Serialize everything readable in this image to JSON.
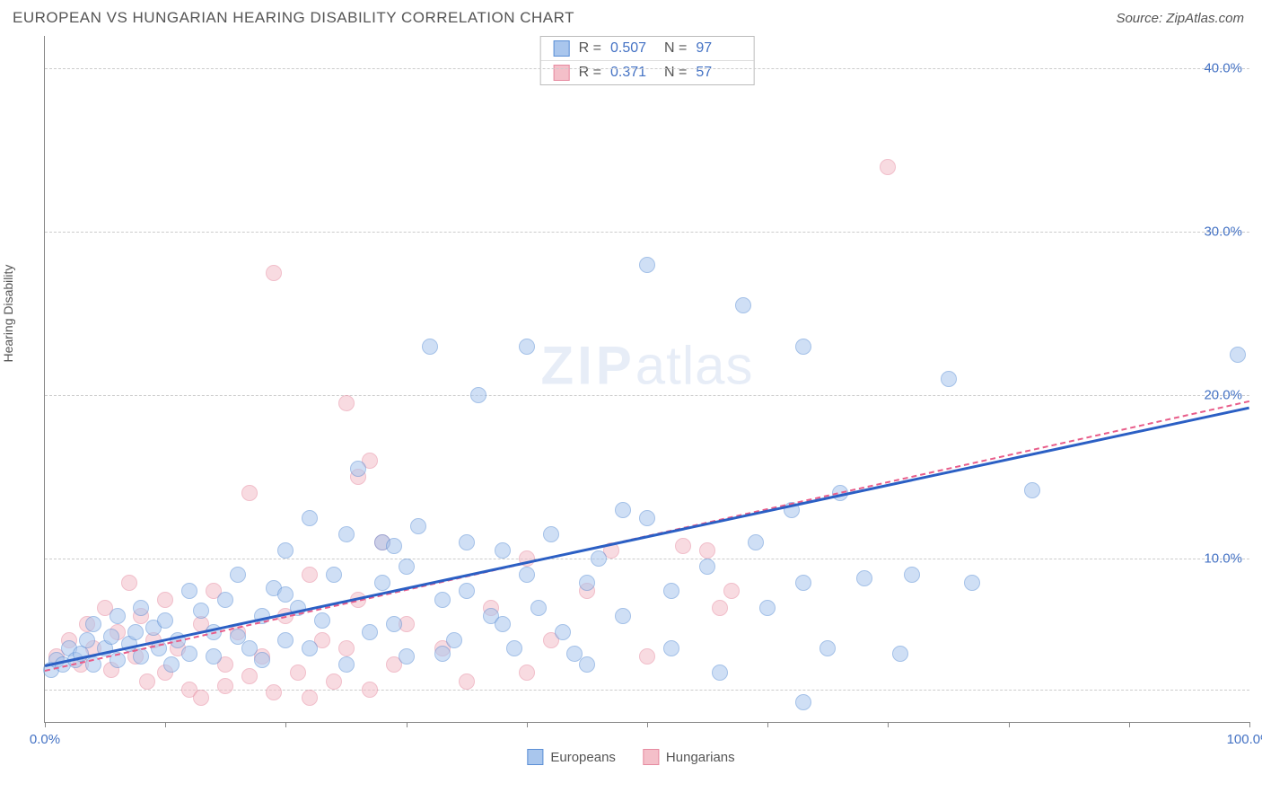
{
  "header": {
    "title": "EUROPEAN VS HUNGARIAN HEARING DISABILITY CORRELATION CHART",
    "source": "Source: ZipAtlas.com"
  },
  "watermark": {
    "bold": "ZIP",
    "rest": "atlas"
  },
  "chart": {
    "type": "scatter",
    "y_axis_label": "Hearing Disability",
    "xlim": [
      0,
      100
    ],
    "ylim": [
      0,
      42
    ],
    "x_ticks": [
      0,
      10,
      20,
      30,
      40,
      50,
      60,
      70,
      80,
      90,
      100
    ],
    "x_tick_labels": {
      "0": "0.0%",
      "100": "100.0%"
    },
    "y_gridlines": [
      2,
      10,
      20,
      30,
      40
    ],
    "y_tick_labels": {
      "10": "10.0%",
      "20": "20.0%",
      "30": "30.0%",
      "40": "40.0%"
    },
    "background_color": "#ffffff",
    "grid_color": "#cccccc",
    "axis_color": "#888888",
    "tick_label_color": "#4472c4",
    "point_radius": 9,
    "point_opacity": 0.55,
    "series_blue": {
      "label": "Europeans",
      "fill": "#a9c6ed",
      "stroke": "#5b8fd6",
      "trend_color": "#2b5fc4",
      "trend_width": 2.5,
      "trend_dash": "none",
      "trend": {
        "x1": 0,
        "y1": 3.5,
        "x2": 100,
        "y2": 19.3
      },
      "R": "0.507",
      "N": "97",
      "points": [
        [
          0.5,
          3.2
        ],
        [
          1,
          3.8
        ],
        [
          1.5,
          3.5
        ],
        [
          2,
          4.5
        ],
        [
          2.5,
          3.8
        ],
        [
          3,
          4.2
        ],
        [
          3.5,
          5
        ],
        [
          4,
          3.5
        ],
        [
          4,
          6
        ],
        [
          5,
          4.5
        ],
        [
          5.5,
          5.2
        ],
        [
          6,
          3.8
        ],
        [
          6,
          6.5
        ],
        [
          7,
          4.8
        ],
        [
          7.5,
          5.5
        ],
        [
          8,
          4
        ],
        [
          8,
          7
        ],
        [
          9,
          5.8
        ],
        [
          9.5,
          4.5
        ],
        [
          10,
          6.2
        ],
        [
          10.5,
          3.5
        ],
        [
          11,
          5
        ],
        [
          12,
          4.2
        ],
        [
          12,
          8
        ],
        [
          13,
          6.8
        ],
        [
          14,
          5.5
        ],
        [
          14,
          4
        ],
        [
          15,
          7.5
        ],
        [
          16,
          5.2
        ],
        [
          16,
          9
        ],
        [
          17,
          4.5
        ],
        [
          18,
          6.5
        ],
        [
          18,
          3.8
        ],
        [
          19,
          8.2
        ],
        [
          20,
          5
        ],
        [
          20,
          10.5
        ],
        [
          21,
          7
        ],
        [
          22,
          4.5
        ],
        [
          22,
          12.5
        ],
        [
          23,
          6.2
        ],
        [
          24,
          9
        ],
        [
          25,
          3.5
        ],
        [
          25,
          11.5
        ],
        [
          26,
          15.5
        ],
        [
          27,
          5.5
        ],
        [
          28,
          8.5
        ],
        [
          28,
          11
        ],
        [
          29,
          6
        ],
        [
          30,
          9.5
        ],
        [
          30,
          4
        ],
        [
          31,
          12
        ],
        [
          32,
          23
        ],
        [
          33,
          7.5
        ],
        [
          34,
          5
        ],
        [
          35,
          11
        ],
        [
          35,
          8
        ],
        [
          36,
          20
        ],
        [
          37,
          6.5
        ],
        [
          38,
          10.5
        ],
        [
          39,
          4.5
        ],
        [
          40,
          23
        ],
        [
          40,
          9
        ],
        [
          41,
          7
        ],
        [
          42,
          11.5
        ],
        [
          43,
          5.5
        ],
        [
          45,
          8.5
        ],
        [
          45,
          3.5
        ],
        [
          46,
          10
        ],
        [
          48,
          6.5
        ],
        [
          50,
          28
        ],
        [
          50,
          12.5
        ],
        [
          52,
          8
        ],
        [
          52,
          4.5
        ],
        [
          55,
          9.5
        ],
        [
          56,
          3
        ],
        [
          58,
          25.5
        ],
        [
          59,
          11
        ],
        [
          60,
          7
        ],
        [
          62,
          13
        ],
        [
          63,
          1.2
        ],
        [
          63,
          8.5
        ],
        [
          65,
          4.5
        ],
        [
          66,
          14
        ],
        [
          68,
          8.8
        ],
        [
          71,
          4.2
        ],
        [
          72,
          9
        ],
        [
          75,
          21
        ],
        [
          77,
          8.5
        ],
        [
          82,
          14.2
        ],
        [
          99,
          22.5
        ],
        [
          63,
          23
        ],
        [
          48,
          13
        ],
        [
          44,
          4.2
        ],
        [
          38,
          6
        ],
        [
          33,
          4.2
        ],
        [
          29,
          10.8
        ],
        [
          20,
          7.8
        ]
      ]
    },
    "series_pink": {
      "label": "Hungarians",
      "fill": "#f4bfc9",
      "stroke": "#e68aa0",
      "trend_color": "#e85d8a",
      "trend_width": 2,
      "trend_dash": "4 3",
      "trend": {
        "x1": 0,
        "y1": 3.2,
        "x2": 100,
        "y2": 19.7
      },
      "R": "0.371",
      "N": "57",
      "points": [
        [
          1,
          4
        ],
        [
          2,
          5
        ],
        [
          3,
          3.5
        ],
        [
          3.5,
          6
        ],
        [
          4,
          4.5
        ],
        [
          5,
          7
        ],
        [
          5.5,
          3.2
        ],
        [
          6,
          5.5
        ],
        [
          7,
          8.5
        ],
        [
          7.5,
          4
        ],
        [
          8,
          6.5
        ],
        [
          8.5,
          2.5
        ],
        [
          9,
          5
        ],
        [
          10,
          7.5
        ],
        [
          10,
          3
        ],
        [
          11,
          4.5
        ],
        [
          12,
          2
        ],
        [
          13,
          6
        ],
        [
          13,
          1.5
        ],
        [
          14,
          8
        ],
        [
          15,
          3.5
        ],
        [
          15,
          2.2
        ],
        [
          16,
          5.5
        ],
        [
          17,
          14
        ],
        [
          17,
          2.8
        ],
        [
          18,
          4
        ],
        [
          19,
          27.5
        ],
        [
          19,
          1.8
        ],
        [
          20,
          6.5
        ],
        [
          21,
          3
        ],
        [
          22,
          9
        ],
        [
          22,
          1.5
        ],
        [
          23,
          5
        ],
        [
          24,
          2.5
        ],
        [
          25,
          19.5
        ],
        [
          25,
          4.5
        ],
        [
          26,
          7.5
        ],
        [
          26,
          15
        ],
        [
          27,
          2
        ],
        [
          27,
          16
        ],
        [
          28,
          11
        ],
        [
          29,
          3.5
        ],
        [
          30,
          6
        ],
        [
          33,
          4.5
        ],
        [
          35,
          2.5
        ],
        [
          37,
          7
        ],
        [
          40,
          3
        ],
        [
          40,
          10
        ],
        [
          42,
          5
        ],
        [
          45,
          8
        ],
        [
          47,
          10.5
        ],
        [
          50,
          4
        ],
        [
          55,
          10.5
        ],
        [
          56,
          7
        ],
        [
          57,
          8
        ],
        [
          70,
          34
        ],
        [
          53,
          10.8
        ]
      ]
    }
  },
  "legend": {
    "items": [
      {
        "label": "Europeans",
        "fill": "#a9c6ed",
        "stroke": "#5b8fd6"
      },
      {
        "label": "Hungarians",
        "fill": "#f4bfc9",
        "stroke": "#e68aa0"
      }
    ]
  }
}
